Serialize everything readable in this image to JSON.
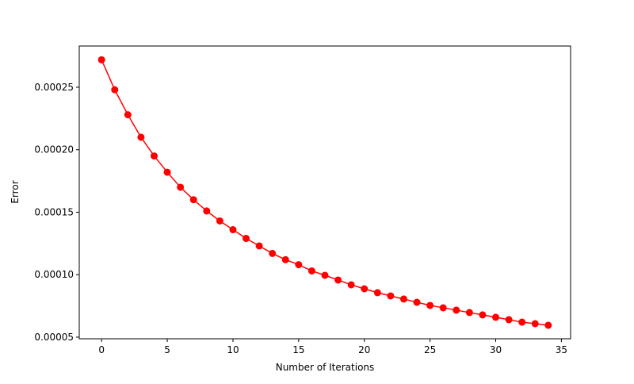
{
  "chart_data": {
    "type": "line",
    "xlabel": "Number of Iterations",
    "ylabel": "Error",
    "x": [
      0,
      1,
      2,
      3,
      4,
      5,
      6,
      7,
      8,
      9,
      10,
      11,
      12,
      13,
      14,
      15,
      16,
      17,
      18,
      19,
      20,
      21,
      22,
      23,
      24,
      25,
      26,
      27,
      28,
      29,
      30,
      31,
      32,
      33,
      34
    ],
    "series": [
      {
        "color": "#ff0000",
        "values": [
          0.000272,
          0.000248,
          0.000228,
          0.00021,
          0.000195,
          0.000182,
          0.00017,
          0.00016,
          0.000151,
          0.000143,
          0.000136,
          0.000129,
          0.000123,
          0.000117,
          0.000112,
          0.000108,
          0.000103,
          9.95e-05,
          9.57e-05,
          9.19e-05,
          8.87e-05,
          8.56e-05,
          8.3e-05,
          8.05e-05,
          7.79e-05,
          7.54e-05,
          7.35e-05,
          7.16e-05,
          6.97e-05,
          6.78e-05,
          6.59e-05,
          6.4e-05,
          6.2e-05,
          6.08e-05,
          5.95e-05
        ]
      }
    ],
    "xlim": [
      -1.7,
      35.7
    ],
    "xticks": [
      0,
      5,
      10,
      15,
      20,
      25,
      30,
      35
    ],
    "ylim": [
      4.87e-05,
      0.000283
    ],
    "yticks": [
      5e-05,
      {
        "value": 0.0001,
        "label": "0.00010"
      },
      0.00015,
      {
        "value": 0.0002,
        "label": "0.00020"
      },
      0.00025
    ]
  }
}
